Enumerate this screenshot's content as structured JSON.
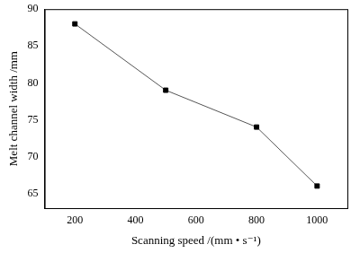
{
  "chart_data": {
    "type": "line",
    "x_label": "Scanning speed /(mm • s⁻¹)",
    "y_label": "Melt channel width /mm",
    "x": [
      200,
      500,
      800,
      1000
    ],
    "values": [
      88,
      79,
      74,
      66
    ],
    "color": "#000000",
    "marker": "square",
    "line_style": "solid",
    "xlim": [
      100,
      1100
    ],
    "xticks": [
      200,
      400,
      600,
      800,
      1000
    ],
    "ylim": [
      63,
      90
    ],
    "yticks": [
      65,
      70,
      75,
      80,
      85,
      90
    ],
    "grid": false
  }
}
